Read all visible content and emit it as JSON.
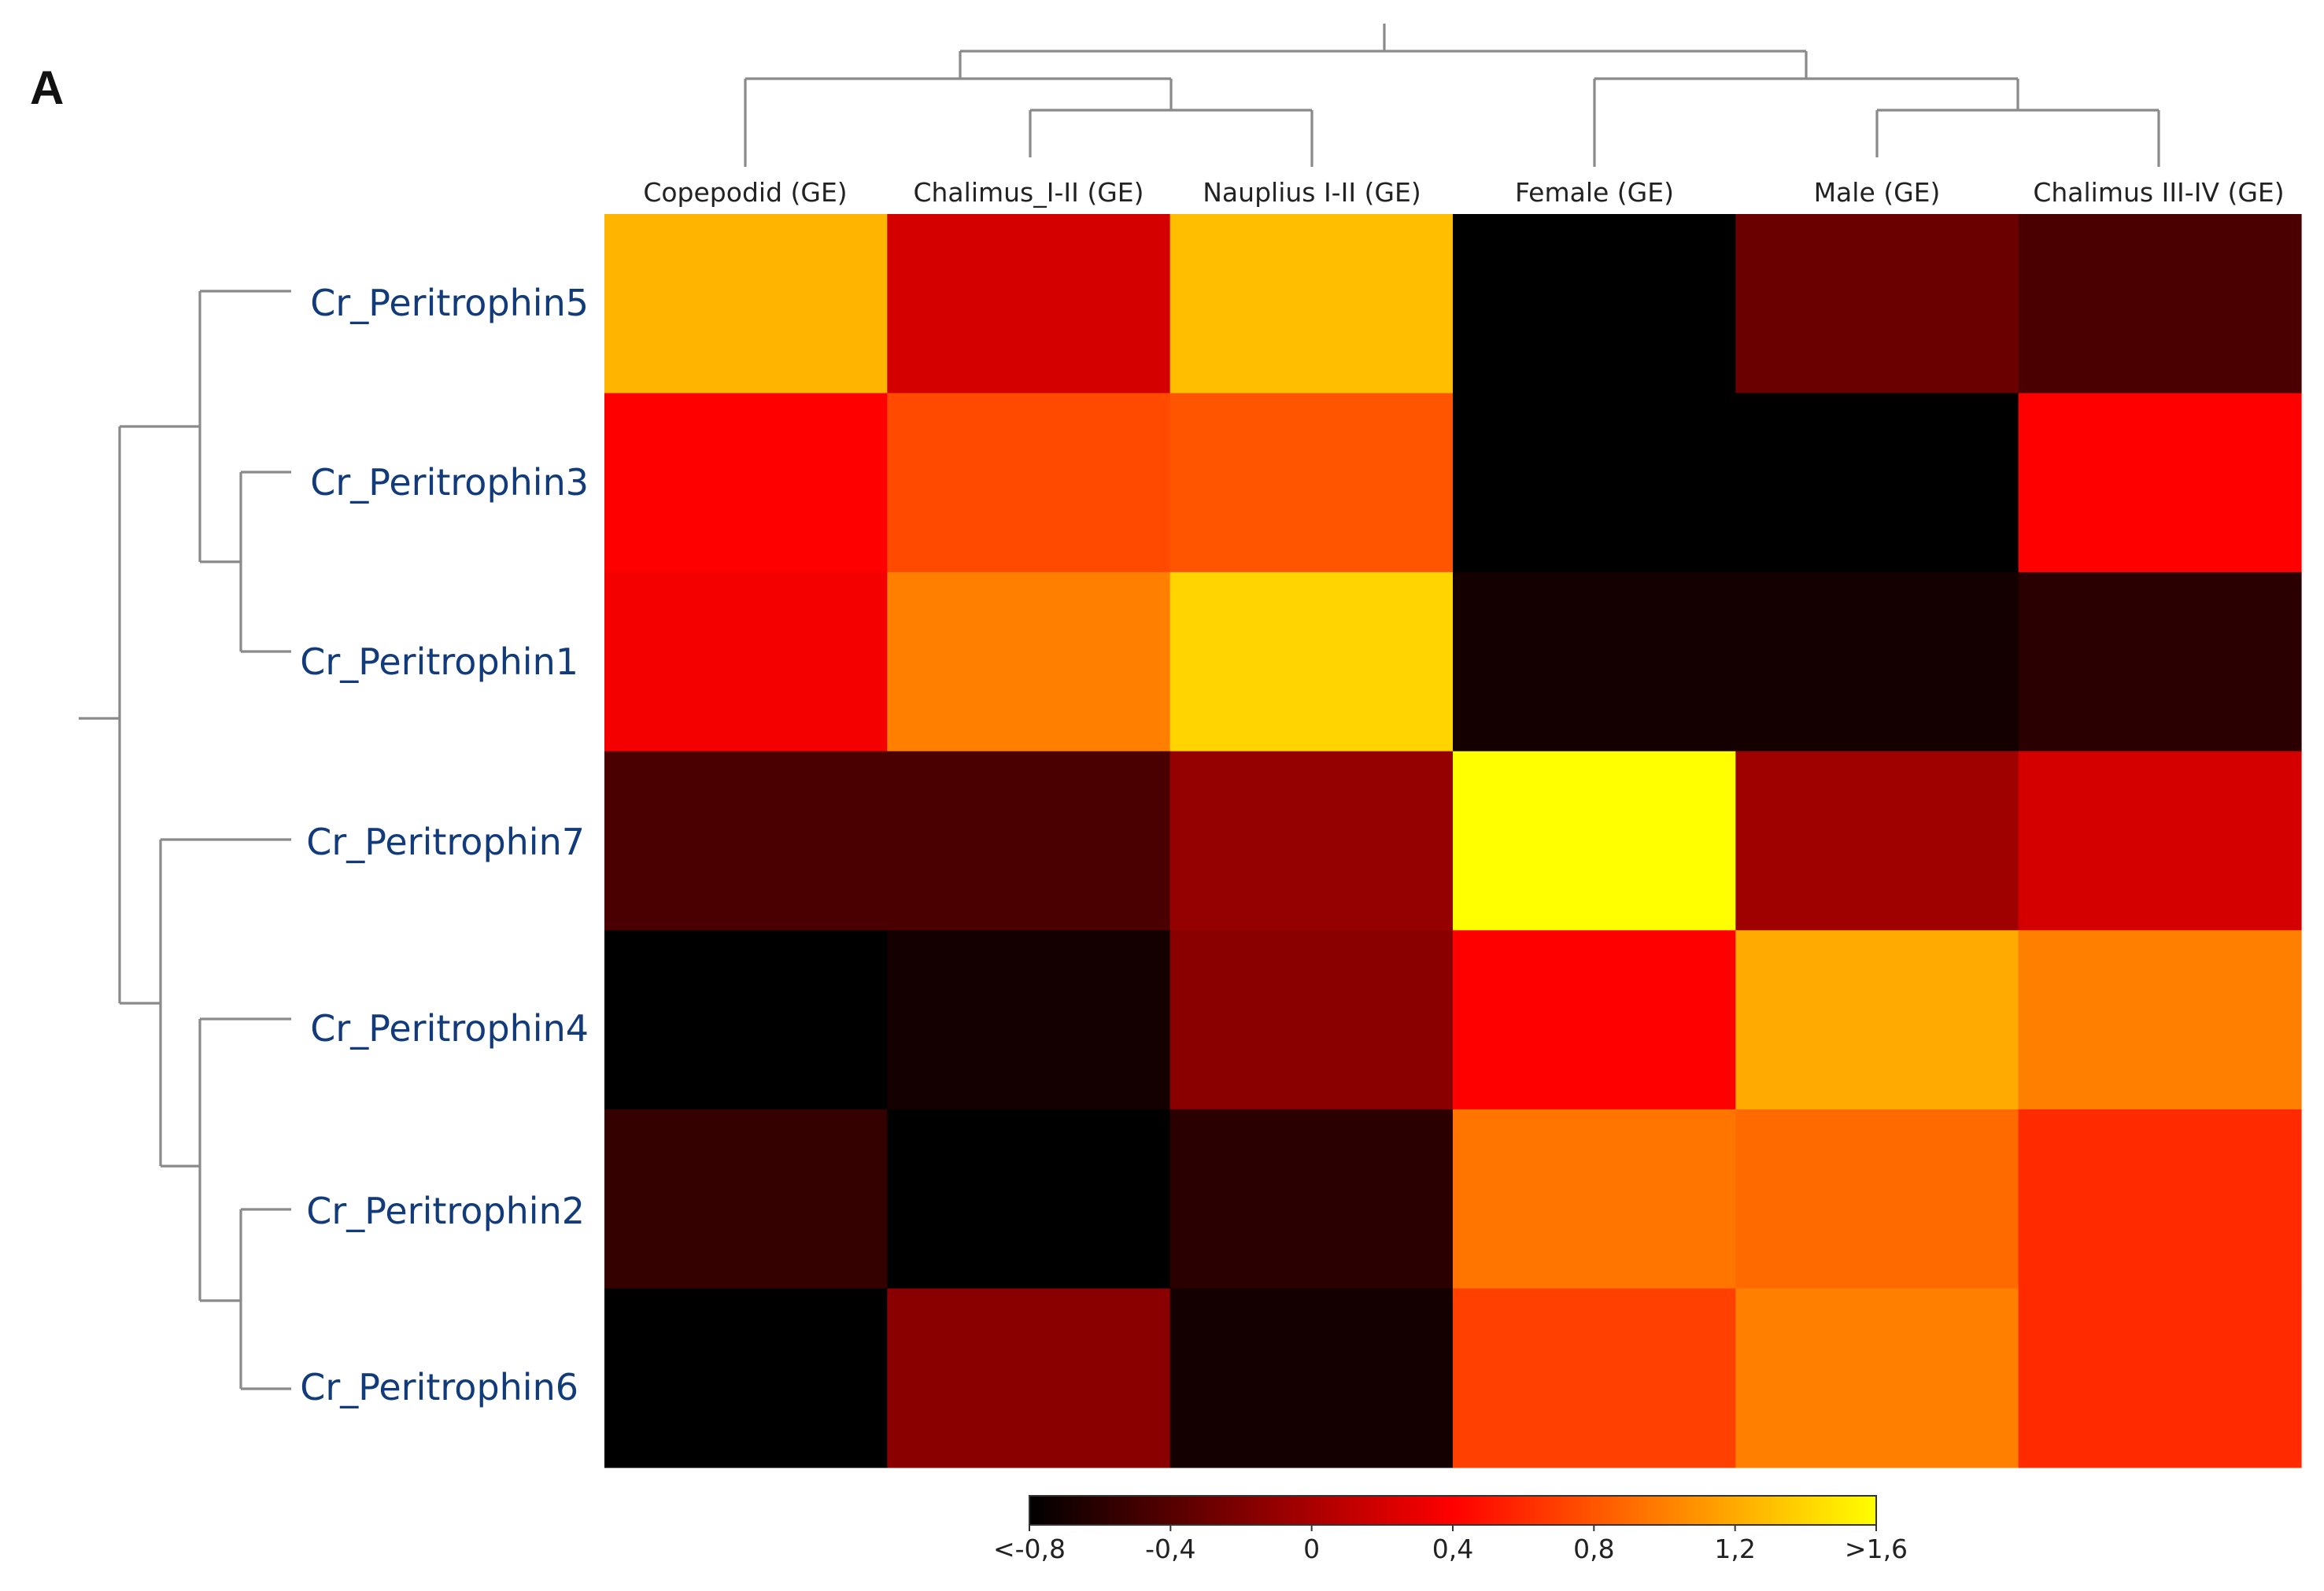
{
  "panel_label": "A",
  "chart_data": {
    "type": "heatmap",
    "title": "",
    "columns": [
      "Copepodid (GE)",
      "Chalimus_I-II (GE)",
      "Nauplius I-II (GE)",
      "Female (GE)",
      "Male (GE)",
      "Chalimus III-IV (GE)"
    ],
    "rows": [
      "Cr_Peritrophin5",
      "Cr_Peritrophin3",
      "Cr_Peritrophin1",
      "Cr_Peritrophin7",
      "Cr_Peritrophin4",
      "Cr_Peritrophin2",
      "Cr_Peritrophin6"
    ],
    "values": [
      [
        1.25,
        0.2,
        1.3,
        -0.8,
        -0.3,
        -0.45
      ],
      [
        0.4,
        0.75,
        0.8,
        -0.8,
        -0.8,
        0.4
      ],
      [
        0.35,
        1.0,
        1.4,
        -0.7,
        -0.7,
        -0.6
      ],
      [
        -0.45,
        -0.45,
        -0.1,
        1.6,
        -0.05,
        0.2
      ],
      [
        -0.8,
        -0.7,
        -0.15,
        0.4,
        1.2,
        1.0
      ],
      [
        -0.55,
        -0.8,
        -0.6,
        0.95,
        0.9,
        0.6
      ],
      [
        -0.8,
        -0.15,
        -0.7,
        0.7,
        1.0,
        0.6
      ]
    ],
    "colorbar": {
      "min": -0.8,
      "max": 1.6,
      "colors": [
        "#000000",
        "#ff0000",
        "#ffff00"
      ],
      "ticks": [
        {
          "value": -0.8,
          "label": "<-0,8"
        },
        {
          "value": -0.4,
          "label": "-0,4"
        },
        {
          "value": 0,
          "label": "0"
        },
        {
          "value": 0.4,
          "label": "0,4"
        },
        {
          "value": 0.8,
          "label": "0,8"
        },
        {
          "value": 1.2,
          "label": "1,2"
        },
        {
          "value": 1.6,
          "label": ">1,6"
        }
      ]
    },
    "column_dendrogram": "((Copepodid, (Chalimus_I-II, Nauplius I-II)), (Female, (Male, Chalimus III-IV)))",
    "row_dendrogram": "((Peritrophin5, (Peritrophin3, Peritrophin1)), (Peritrophin7, (Peritrophin4, (Peritrophin2, Peritrophin6))))"
  }
}
